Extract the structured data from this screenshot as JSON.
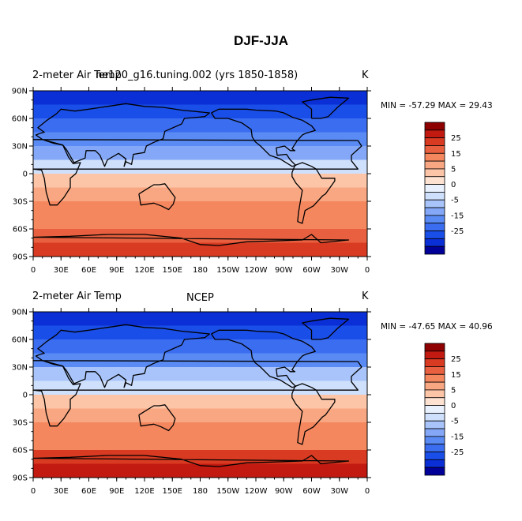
{
  "figure": {
    "title": "DJF-JJA"
  },
  "colorbar": {
    "colors": [
      "#000099",
      "#0a2fd6",
      "#1a4ee8",
      "#3b6df0",
      "#5a8af4",
      "#84a8f7",
      "#a8c4fa",
      "#cfe0fd",
      "#e9f1fe",
      "#fde2d2",
      "#fcc5a8",
      "#f9a782",
      "#f5875f",
      "#e8603f",
      "#d93a22",
      "#c21a10",
      "#8e0000"
    ],
    "tick_labels": [
      "25",
      "15",
      "5",
      "0",
      "-5",
      "-15",
      "-25"
    ]
  },
  "chart_data": [
    {
      "type": "heatmap",
      "left_title": "2-meter Air Temp",
      "center_title": "",
      "overlap_title": "ne120_g16.tuning.002 (yrs 1850-1858)",
      "right_title": "K",
      "min_max_text": "MIN = -57.29  MAX =   29.43",
      "min": -57.29,
      "max": 29.43,
      "xlim": [
        0,
        360
      ],
      "ylim": [
        -90,
        90
      ],
      "x_tick_labels": [
        "0",
        "30E",
        "60E",
        "90E",
        "120E",
        "150E",
        "180",
        "150W",
        "120W",
        "90W",
        "60W",
        "30W",
        "0"
      ],
      "y_tick_labels": [
        "90N",
        "60N",
        "30N",
        "0",
        "30S",
        "60S",
        "90S"
      ],
      "bands": [
        {
          "lat_top": 90,
          "lat_bot": 75,
          "value": -27
        },
        {
          "lat_top": 75,
          "lat_bot": 60,
          "value": -22
        },
        {
          "lat_top": 60,
          "lat_bot": 45,
          "value": -16
        },
        {
          "lat_top": 45,
          "lat_bot": 30,
          "value": -10
        },
        {
          "lat_top": 30,
          "lat_bot": 15,
          "value": -5
        },
        {
          "lat_top": 15,
          "lat_bot": 0,
          "value": -1
        },
        {
          "lat_top": 0,
          "lat_bot": -15,
          "value": 2
        },
        {
          "lat_top": -15,
          "lat_bot": -30,
          "value": 5
        },
        {
          "lat_top": -30,
          "lat_bot": -45,
          "value": 7
        },
        {
          "lat_top": -45,
          "lat_bot": -60,
          "value": 9
        },
        {
          "lat_top": -60,
          "lat_bot": -75,
          "value": 15
        },
        {
          "lat_top": -75,
          "lat_bot": -90,
          "value": 20
        }
      ]
    },
    {
      "type": "heatmap",
      "left_title": "2-meter Air Temp",
      "center_title": "NCEP",
      "overlap_title": "",
      "right_title": "K",
      "min_max_text": "MIN = -47.65  MAX =   40.96",
      "min": -47.65,
      "max": 40.96,
      "xlim": [
        0,
        360
      ],
      "ylim": [
        -90,
        90
      ],
      "x_tick_labels": [
        "0",
        "30E",
        "60E",
        "90E",
        "120E",
        "150E",
        "180",
        "150W",
        "120W",
        "90W",
        "60W",
        "30W",
        "0"
      ],
      "y_tick_labels": [
        "90N",
        "60N",
        "30N",
        "0",
        "30S",
        "60S",
        "90S"
      ],
      "bands": [
        {
          "lat_top": 90,
          "lat_bot": 75,
          "value": -27
        },
        {
          "lat_top": 75,
          "lat_bot": 60,
          "value": -24
        },
        {
          "lat_top": 60,
          "lat_bot": 45,
          "value": -18
        },
        {
          "lat_top": 45,
          "lat_bot": 30,
          "value": -12
        },
        {
          "lat_top": 30,
          "lat_bot": 15,
          "value": -4
        },
        {
          "lat_top": 15,
          "lat_bot": 0,
          "value": -1
        },
        {
          "lat_top": 0,
          "lat_bot": -15,
          "value": 2
        },
        {
          "lat_top": -15,
          "lat_bot": -30,
          "value": 5
        },
        {
          "lat_top": -30,
          "lat_bot": -45,
          "value": 6
        },
        {
          "lat_top": -45,
          "lat_bot": -60,
          "value": 9
        },
        {
          "lat_top": -60,
          "lat_bot": -75,
          "value": 16
        },
        {
          "lat_top": -75,
          "lat_bot": -90,
          "value": 24
        }
      ]
    }
  ]
}
